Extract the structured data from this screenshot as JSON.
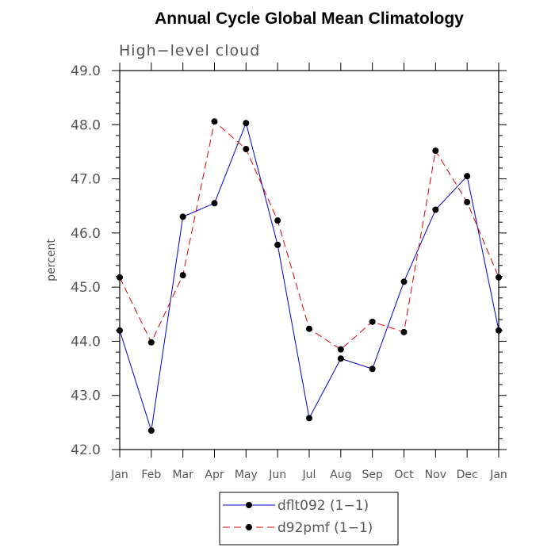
{
  "chart_data": {
    "type": "line",
    "title": "Annual Cycle Global Mean Climatology",
    "subtitle": "High−level cloud",
    "ylabel": "percent",
    "xlabel": "",
    "categories": [
      "Jan",
      "Feb",
      "Mar",
      "Apr",
      "May",
      "Jun",
      "Jul",
      "Aug",
      "Sep",
      "Oct",
      "Nov",
      "Dec",
      "Jan"
    ],
    "ylim": [
      42.0,
      49.0
    ],
    "yticks": [
      "42.0",
      "43.0",
      "44.0",
      "45.0",
      "46.0",
      "47.0",
      "48.0",
      "49.0"
    ],
    "grid": false,
    "legend_position": "bottom",
    "series": [
      {
        "name": "dflt092 (1−1)",
        "color": "#0000cc",
        "dash": "solid",
        "values": [
          44.2,
          42.35,
          46.3,
          46.55,
          48.03,
          45.78,
          42.58,
          43.68,
          43.49,
          45.1,
          46.43,
          47.05,
          44.2
        ]
      },
      {
        "name": "d92pmf (1−1)",
        "color": "#dd0000",
        "dash": "dashed",
        "values": [
          45.18,
          43.98,
          45.22,
          48.06,
          47.55,
          46.23,
          44.23,
          43.85,
          44.36,
          44.17,
          47.52,
          46.57,
          45.18
        ]
      }
    ]
  }
}
